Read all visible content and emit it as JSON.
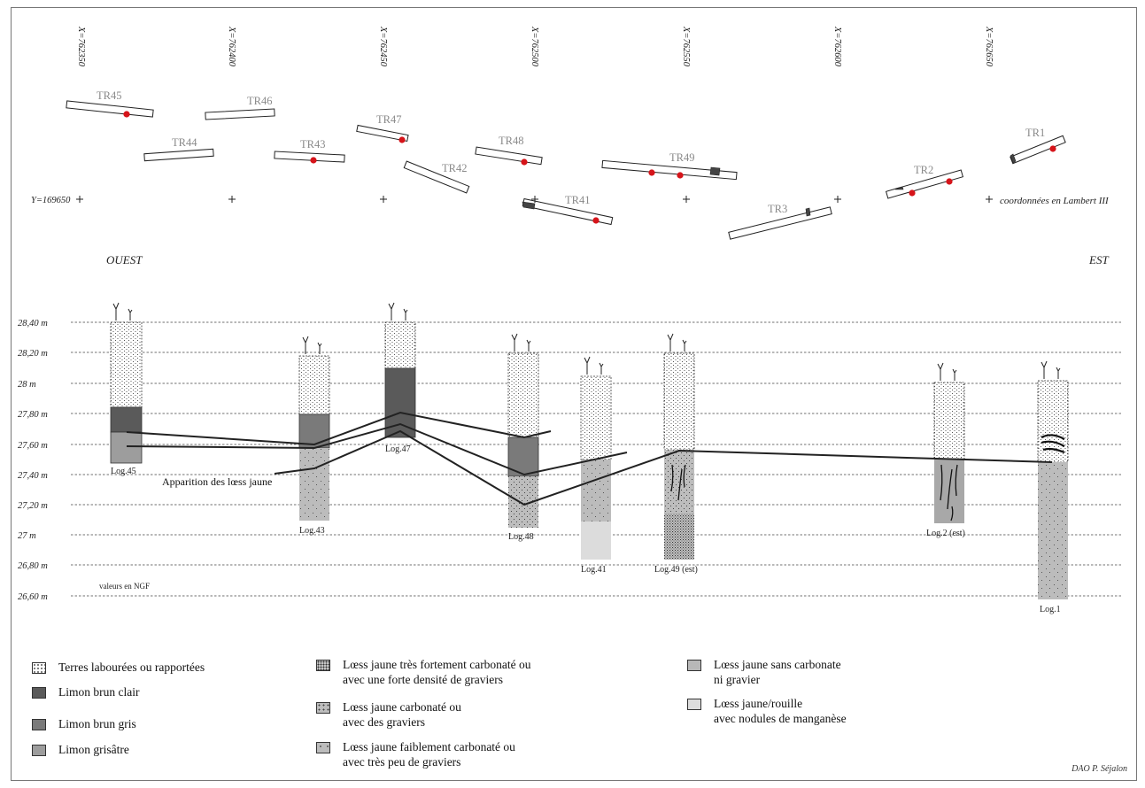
{
  "plan": {
    "x_coords": [
      "X=762350",
      "X=762400",
      "X=762450",
      "X=762500",
      "X=762550",
      "X=762600",
      "X=762650"
    ],
    "y_label": "Y=169650",
    "crs_note": "coordonnées en Lambert III",
    "west": "OUEST",
    "east": "EST",
    "trenches": [
      "TR45",
      "TR46",
      "TR44",
      "TR43",
      "TR47",
      "TR42",
      "TR48",
      "TR41",
      "TR49",
      "TR3",
      "TR2",
      "TR1"
    ]
  },
  "section": {
    "y_ticks": [
      "28,40 m",
      "28,20 m",
      "28 m",
      "27,80 m",
      "27,60 m",
      "27,40 m",
      "27,20 m",
      "27 m",
      "26,80 m",
      "26,60 m"
    ],
    "ngf_note": "valeurs en NGF",
    "annotation": "Apparition des lœss jaune",
    "logs": [
      "Log.45",
      "Log.43",
      "Log.47",
      "Log.48",
      "Log.41",
      "Log.49 (est)",
      "Log.2 (est)",
      "Log.1"
    ]
  },
  "legend": {
    "terres": "Terres labourées ou rapportées",
    "limon_brun_clair": "Limon brun clair",
    "limon_brun_gris": "Limon brun gris",
    "limon_grisatre": "Limon grisâtre",
    "loess_tres_fort_1": "Lœss jaune très fortement carbonaté ou",
    "loess_tres_fort_2": "avec une forte densité de graviers",
    "loess_carb_1": "Lœss jaune carbonaté ou",
    "loess_carb_2": "avec des graviers",
    "loess_faible_1": "Lœss jaune faiblement carbonaté ou",
    "loess_faible_2": "avec très peu de graviers",
    "loess_sans_1": "Lœss jaune sans carbonate",
    "loess_sans_2": "ni gravier",
    "loess_rouille_1": "Lœss jaune/rouille",
    "loess_rouille_2": "avec nodules de manganèse"
  },
  "credit": "DAO P. Séjalon",
  "colors": {
    "limon_brun_clair": "#5a5a5a",
    "limon_brun_gris": "#7a7a7a",
    "limon_grisatre": "#9d9d9d",
    "loess": "#b8b8b8",
    "loess_rouille": "#dcdcdc",
    "dot": "#d6141a"
  }
}
